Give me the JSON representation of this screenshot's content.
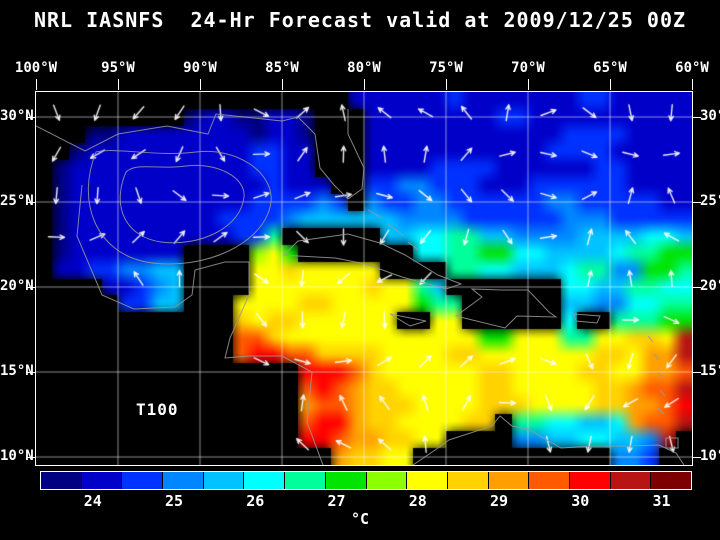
{
  "title": "NRL IASNFS  24-Hr Forecast valid at 2009/12/25 00Z",
  "map": {
    "label": "T100",
    "lon_labels": [
      "100°W",
      "95°W",
      "90°W",
      "85°W",
      "80°W",
      "75°W",
      "70°W",
      "65°W",
      "60°W"
    ],
    "lat_labels": [
      "30°N",
      "25°N",
      "20°N",
      "15°N",
      "10°N"
    ],
    "grid": {
      "cols": 40,
      "rows": 22,
      "codes": [
        "LLLLLLLLLLLLLLLLLLLbbbbbbcbbbbbbbccbbbbb",
        "LLLLLLLLLabbaabbaLLLbbbbbbbbccbbbbbbbbbb",
        "LLLaabbbbbbbbabbaLLLbbbbbbbbbbbbccccbbbb",
        "LLabbbbbbbbbbccbbLLLbbbbbbbbbbbccccbbbbb",
        "LabbbbbbbbbbbccbbLLLbbbbccccbbbbbbccbbbb",
        "LabbbbbbbbbbbbcbbbLLccddcccbbbccccccbbbb",
        "LabbbbbbbbbbbccccdcLdccddccccccddcccccbb",
        "Labbbbbbbbbccccdeeeeeeddddccccccdddccccc",
        "LabbbbbbbbbbccgLLLLLLeeffggeeddddeeeeffe",
        "LabbbbbbbLLLLijhLLLLLLLffgghhffeeeefgghh",
        "LbbccddeeLLLLjjkjjjjjLLLLggffeeefggddhhg",
        "LLLLbbcdeLLLLjjjjjjjkjjgeLLLLLLLffeeggff",
        "LLLLLcceeLLLjjjjkkjjjjjhggLLLLLLeeddffgg",
        "LLLLLLLLLLLLkjkkjjjjjjLLjjLLLLLLfLLggghh",
        "LLLLLLLLLLLLmmkjjjjjjjjjjjjhhjjjggjjkkjo",
        "LLLLLLLLLLLLmnnmmkkkkjjjjkkjjjjjjjkkjllo",
        "LLLLLLLLLLLLLLLLnnnmkjjjjjjkkjjjjkkjjllm",
        "LLLLLLLLLLLLLLLLmnmlkkjjjjjkkjjjjjkklmmo",
        "LLLLLLLLLLLLLLLLlmmlkkkjjjjkkkjjjjkkllmn",
        "LLLLLLLLLLLLLLLLmnnlkkjjjjkkLggffeeflmmo",
        "LLLLLLLLLLLLLLLLnnmllkkjjLLLLddeeffeedoL",
        "LLLLLLLLLLLLLLLLLLlkkjjLLLLLLLLLLLLddcLL"
      ]
    },
    "palette": {
      "L": "#000000",
      "a": "#000080",
      "b": "#0000C8",
      "c": "#0032FF",
      "d": "#0087FF",
      "e": "#00C3FF",
      "f": "#00FFFF",
      "g": "#00FF9B",
      "h": "#00E400",
      "i": "#8CFF00",
      "j": "#FFFF00",
      "k": "#FFD200",
      "l": "#FFA000",
      "m": "#FF5A00",
      "n": "#FF0000",
      "o": "#B81414",
      "p": "#7D0000"
    },
    "arrow_field": {
      "nx": 16,
      "ny": 9,
      "color": "#FFFFFF"
    }
  },
  "colorbar": {
    "colors": [
      "#000080",
      "#0000C8",
      "#0032FF",
      "#0087FF",
      "#00C3FF",
      "#00FFFF",
      "#00FF9B",
      "#00E400",
      "#8CFF00",
      "#FFFF00",
      "#FFD200",
      "#FFA000",
      "#FF5A00",
      "#FF0000",
      "#B81414",
      "#7D0000"
    ],
    "tick_labels": [
      "24",
      "25",
      "26",
      "27",
      "28",
      "29",
      "30",
      "31"
    ],
    "unit": "°C"
  }
}
